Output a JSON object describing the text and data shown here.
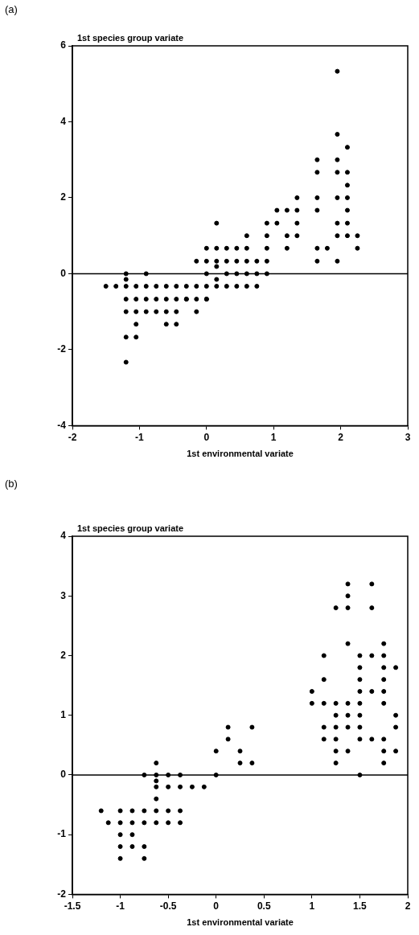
{
  "chart_data": [
    {
      "type": "scatter",
      "title": "(a)",
      "ylabel": "1st species group variate",
      "xlabel": "1st environmental variate",
      "xlim": [
        -2,
        3
      ],
      "xticks": [
        -2,
        -1,
        0,
        1,
        2,
        3
      ],
      "ylim": [
        -4,
        6
      ],
      "yticks": [
        -4,
        -2,
        0,
        2,
        4,
        6
      ],
      "grid": false,
      "legend": false,
      "marker": "circle",
      "ref_lines": [
        {
          "axis": "y",
          "value": 0,
          "color": "#000000"
        }
      ],
      "series": [
        {
          "color": "#000000",
          "x": [
            -1.2,
            -0.9,
            0,
            -1.2,
            0.15,
            -1.5,
            -1.35,
            -1.2,
            -1.05,
            -0.9,
            -0.75,
            -0.6,
            -0.45,
            -0.3,
            -0.15,
            0,
            0.15,
            -1.2,
            -1.05,
            -0.9,
            -0.75,
            -0.6,
            -0.45,
            -0.3,
            -0.15,
            0,
            -1.2,
            -1.05,
            -0.9,
            -0.75,
            -0.6,
            -0.45,
            -0.15,
            -1.05,
            -0.6,
            -0.45,
            -1.2,
            -1.05,
            -1.2,
            -0.15,
            0,
            0,
            0,
            -0.3,
            0.15,
            0.15,
            0.15,
            0.15,
            0.3,
            0.3,
            0.3,
            0.3,
            0.45,
            0.45,
            0.45,
            0.45,
            0.6,
            0.6,
            0.6,
            0.6,
            0.6,
            0.75,
            0.75,
            0.75,
            0.9,
            0.9,
            0.9,
            0.9,
            0.9,
            1.05,
            1.05,
            1.2,
            1.2,
            1.2,
            1.35,
            1.35,
            1.35,
            1.35,
            1.65,
            1.65,
            1.65,
            1.65,
            1.65,
            1.65,
            1.8,
            1.95,
            1.95,
            1.95,
            1.95,
            1.95,
            1.95,
            1.95,
            1.95,
            2.1,
            2.1,
            2.1,
            2.1,
            2.1,
            2.1,
            2.1,
            2.25,
            2.25
          ],
          "values": [
            0,
            0,
            0,
            -0.15,
            -0.15,
            -0.33,
            -0.33,
            -0.33,
            -0.33,
            -0.33,
            -0.33,
            -0.33,
            -0.33,
            -0.33,
            -0.33,
            -0.33,
            -0.33,
            -0.67,
            -0.67,
            -0.67,
            -0.67,
            -0.67,
            -0.67,
            -0.67,
            -0.67,
            -0.67,
            -1,
            -1,
            -1,
            -1,
            -1,
            -1,
            -1,
            -1.33,
            -1.33,
            -1.33,
            -1.67,
            -1.67,
            -2.33,
            0.33,
            0.33,
            0.67,
            -0.67,
            -0.67,
            1.33,
            0.67,
            0.33,
            0.19,
            0.67,
            0.33,
            0,
            -0.33,
            0.67,
            0.33,
            0,
            -0.33,
            1,
            0.67,
            0.33,
            0,
            -0.33,
            0.33,
            0,
            -0.33,
            1.33,
            1,
            0.67,
            0.33,
            0,
            1.67,
            1.33,
            1.67,
            1,
            0.67,
            2,
            1.67,
            1.33,
            1,
            3,
            2.67,
            2,
            1.67,
            0.67,
            0.33,
            0.67,
            5.33,
            3.67,
            3,
            2.67,
            2,
            1.33,
            1,
            0.33,
            3.33,
            2.67,
            2.33,
            2,
            1.67,
            1.33,
            1,
            1,
            0.67
          ]
        }
      ]
    },
    {
      "type": "scatter",
      "title": "(b)",
      "ylabel": "1st species group variate",
      "xlabel": "1st environmental variate",
      "xlim": [
        -1.5,
        2
      ],
      "xticks": [
        -1.5,
        -1,
        -0.5,
        0,
        0.5,
        1,
        1.5,
        2
      ],
      "ylim": [
        -2,
        4
      ],
      "yticks": [
        -2,
        -1,
        0,
        1,
        2,
        3,
        4
      ],
      "grid": false,
      "legend": false,
      "marker": "circle",
      "ref_lines": [
        {
          "axis": "y",
          "value": 0,
          "color": "#000000"
        }
      ],
      "series": [
        {
          "color": "#000000",
          "x": [
            -1.2,
            -1.125,
            -1,
            -1,
            -1,
            -1,
            -1,
            -0.875,
            -0.875,
            -0.875,
            -0.875,
            -0.75,
            -0.75,
            -0.75,
            -0.75,
            -0.75,
            -0.625,
            -0.625,
            -0.625,
            -0.625,
            -0.625,
            -0.625,
            -0.625,
            -0.5,
            -0.5,
            -0.5,
            -0.5,
            -0.375,
            -0.375,
            -0.375,
            -0.375,
            -0.25,
            -0.125,
            0,
            0,
            0.125,
            0.125,
            0.25,
            0.25,
            0.375,
            0.375,
            1,
            1,
            1.125,
            1.125,
            1.125,
            1.125,
            1.125,
            1.25,
            1.25,
            1.25,
            1.25,
            1.25,
            1.25,
            1.25,
            1.375,
            1.375,
            1.375,
            1.375,
            1.375,
            1.375,
            1.375,
            1.375,
            1.5,
            1.5,
            1.5,
            1.5,
            1.5,
            1.5,
            1.5,
            1.5,
            1.5,
            1.625,
            1.625,
            1.625,
            1.625,
            1.625,
            1.75,
            1.75,
            1.75,
            1.75,
            1.75,
            1.75,
            1.75,
            1.75,
            1.75,
            1.875,
            1.875,
            1.875,
            1.875
          ],
          "values": [
            -0.6,
            -0.8,
            -0.6,
            -0.8,
            -1,
            -1.2,
            -1.4,
            -0.6,
            -0.8,
            -1,
            -1.2,
            0,
            -0.6,
            -0.8,
            -1.2,
            -1.4,
            0.2,
            0,
            -0.1,
            -0.2,
            -0.4,
            -0.6,
            -0.8,
            0,
            -0.2,
            -0.6,
            -0.8,
            0,
            -0.2,
            -0.6,
            -0.8,
            -0.2,
            -0.2,
            0.4,
            0,
            0.8,
            0.6,
            0.4,
            0.2,
            0.8,
            0.2,
            1.4,
            1.2,
            2,
            1.6,
            1.2,
            0.8,
            0.6,
            2.8,
            1.2,
            1,
            0.8,
            0.6,
            0.4,
            0.2,
            3.2,
            3,
            2.8,
            2.2,
            1.2,
            1,
            0.8,
            0.4,
            2,
            1.8,
            1.6,
            1.4,
            1.2,
            1,
            0.8,
            0.6,
            0,
            3.2,
            2.8,
            2,
            1.4,
            0.6,
            2.2,
            2,
            1.8,
            1.6,
            1.4,
            1.2,
            0.6,
            0.4,
            0.2,
            1.8,
            1,
            0.8,
            0.4
          ]
        }
      ]
    }
  ]
}
